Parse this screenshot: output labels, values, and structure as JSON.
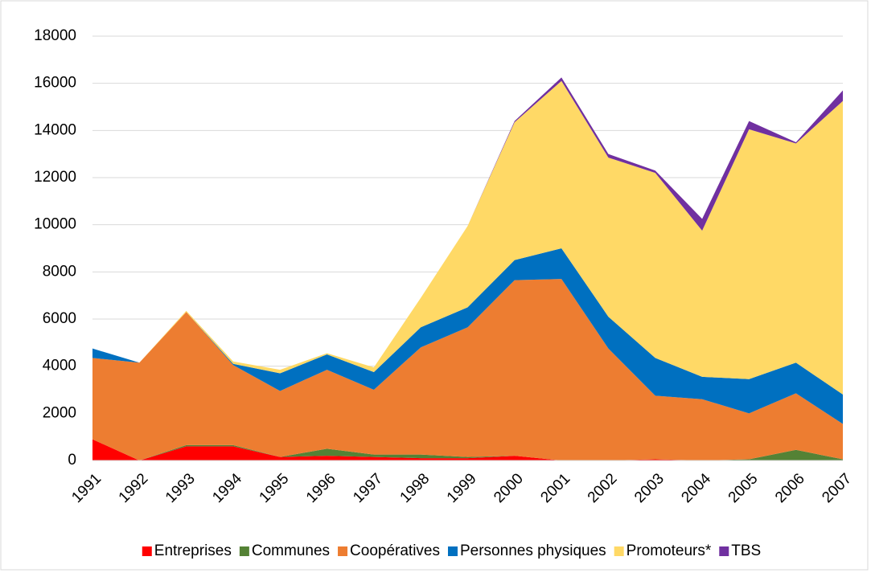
{
  "chart_data": {
    "type": "stacked_area",
    "categories": [
      "1991",
      "1992",
      "1993",
      "1994",
      "1995",
      "1996",
      "1997",
      "1998",
      "1999",
      "2000",
      "2001",
      "2002",
      "2003",
      "2004",
      "2005",
      "2006",
      "2007"
    ],
    "series": [
      {
        "name": "Entreprises",
        "color": "#ff0000",
        "values": [
          900,
          0,
          600,
          600,
          150,
          200,
          150,
          100,
          100,
          200,
          0,
          0,
          50,
          0,
          0,
          0,
          0
        ]
      },
      {
        "name": "Communes",
        "color": "#548235",
        "values": [
          0,
          0,
          50,
          50,
          0,
          300,
          100,
          150,
          50,
          0,
          0,
          0,
          0,
          0,
          50,
          450,
          50
        ]
      },
      {
        "name": "Coopératives",
        "color": "#ed7d31",
        "values": [
          3450,
          4150,
          5650,
          3400,
          2800,
          3350,
          2750,
          4550,
          5500,
          7450,
          7700,
          4750,
          2700,
          2600,
          1950,
          2400,
          1500
        ]
      },
      {
        "name": "Personnes physiques",
        "color": "#0070c0",
        "values": [
          400,
          0,
          0,
          50,
          750,
          650,
          750,
          850,
          850,
          850,
          1300,
          1350,
          1600,
          950,
          1450,
          1300,
          1250
        ]
      },
      {
        "name": "Promoteurs*",
        "color": "#ffd966",
        "values": [
          0,
          0,
          50,
          100,
          150,
          50,
          200,
          1250,
          3450,
          5850,
          7100,
          6750,
          7850,
          6200,
          10600,
          9300,
          12450
        ]
      },
      {
        "name": "TBS",
        "color": "#7030a0",
        "values": [
          0,
          0,
          0,
          0,
          0,
          0,
          0,
          0,
          0,
          50,
          150,
          150,
          100,
          500,
          350,
          50,
          450
        ]
      }
    ],
    "ylim": [
      0,
      18000
    ],
    "yticks": [
      0,
      2000,
      4000,
      6000,
      8000,
      10000,
      12000,
      14000,
      16000,
      18000
    ],
    "grid": true,
    "legend": "bottom"
  }
}
